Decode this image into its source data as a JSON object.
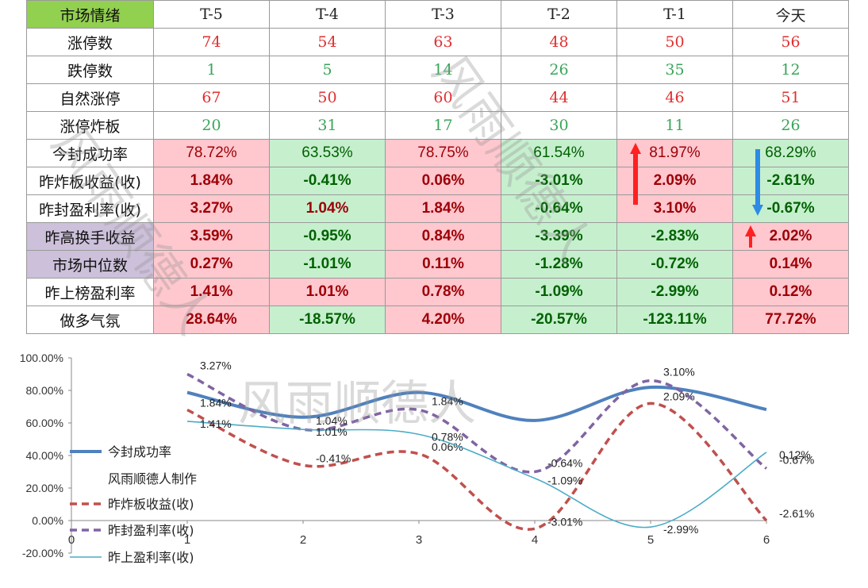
{
  "table": {
    "header": [
      "市场情绪",
      "T-5",
      "T-4",
      "T-3",
      "T-2",
      "T-1",
      "今天"
    ],
    "rows": [
      {
        "label": "涨停数",
        "values": [
          "74",
          "54",
          "63",
          "48",
          "50",
          "56"
        ],
        "kind": "num",
        "color": "red"
      },
      {
        "label": "跌停数",
        "values": [
          "1",
          "5",
          "14",
          "26",
          "35",
          "12"
        ],
        "kind": "num",
        "color": "green"
      },
      {
        "label": "自然涨停",
        "values": [
          "67",
          "50",
          "60",
          "44",
          "46",
          "51"
        ],
        "kind": "num",
        "color": "red"
      },
      {
        "label": "涨停炸板",
        "values": [
          "20",
          "31",
          "17",
          "30",
          "11",
          "26"
        ],
        "kind": "num",
        "color": "green"
      },
      {
        "label": "今封成功率",
        "values": [
          "78.72%",
          "63.53%",
          "78.75%",
          "61.54%",
          "81.97%",
          "68.29%"
        ],
        "kind": "pct-plain",
        "fills": [
          "pink",
          "green",
          "pink",
          "green",
          "pink",
          "green"
        ]
      },
      {
        "label": "昨炸板收益(收)",
        "values": [
          "1.84%",
          "-0.41%",
          "0.06%",
          "-3.01%",
          "2.09%",
          "-2.61%"
        ],
        "kind": "pct",
        "fills": [
          "pink",
          "green",
          "pink",
          "green",
          "pink",
          "green"
        ]
      },
      {
        "label": "昨封盈利率(收)",
        "values": [
          "3.27%",
          "1.04%",
          "1.84%",
          "-0.64%",
          "3.10%",
          "-0.67%"
        ],
        "kind": "pct",
        "fills": [
          "pink",
          "green",
          "pink",
          "green",
          "pink",
          "green"
        ]
      },
      {
        "label": "昨高换手收益",
        "values": [
          "3.59%",
          "-0.95%",
          "0.84%",
          "-3.39%",
          "-2.83%",
          "2.02%"
        ],
        "kind": "pct",
        "fills": [
          "pink",
          "green",
          "pink",
          "green",
          "green",
          "pink"
        ],
        "labelFill": "purple"
      },
      {
        "label": "市场中位数",
        "values": [
          "0.27%",
          "-1.01%",
          "0.11%",
          "-1.28%",
          "-0.72%",
          "0.14%"
        ],
        "kind": "pct",
        "fills": [
          "pink",
          "green",
          "pink",
          "green",
          "green",
          "pink"
        ],
        "labelFill": "purple"
      },
      {
        "label": "昨上榜盈利率",
        "values": [
          "1.41%",
          "1.01%",
          "0.78%",
          "-1.09%",
          "-2.99%",
          "0.12%"
        ],
        "kind": "pct",
        "fills": [
          "pink",
          "pink",
          "pink",
          "green",
          "green",
          "pink"
        ]
      },
      {
        "label": "做多气氛",
        "values": [
          "28.64%",
          "-18.57%",
          "4.20%",
          "-20.57%",
          "-123.11%",
          "77.72%"
        ],
        "kind": "pct",
        "fills": [
          "pink",
          "green",
          "pink",
          "green",
          "green",
          "pink"
        ]
      }
    ]
  },
  "watermarks": [
    "风雨顺德人",
    "风雨顺德人",
    "风雨顺德人"
  ],
  "chart_data": {
    "type": "line",
    "x": [
      1,
      2,
      3,
      4,
      5,
      6
    ],
    "xlim": [
      0,
      6
    ],
    "ylim": [
      -20,
      100
    ],
    "yticks": [
      -20,
      0,
      20,
      40,
      60,
      80,
      100
    ],
    "ytick_labels": [
      "-20.00%",
      "0.00%",
      "20.00%",
      "40.00%",
      "60.00%",
      "80.00%",
      "100.00%"
    ],
    "xticks": [
      0,
      1,
      2,
      3,
      4,
      5,
      6
    ],
    "legend_position": "left",
    "legend_note": "风雨顺德人制作",
    "series": [
      {
        "name": "今封成功率",
        "values": [
          78.72,
          63.53,
          78.75,
          61.54,
          81.97,
          68.29
        ],
        "color": "#4f81bd",
        "style": "solid-thick",
        "labels": []
      },
      {
        "name": "昨炸板收益(收)",
        "values": [
          1.84,
          -0.41,
          0.06,
          -3.01,
          2.09,
          -2.61
        ],
        "scale": 20,
        "offset": 32,
        "color": "#c0504d",
        "style": "dashed",
        "plot": [
          68,
          34,
          41,
          -5,
          72,
          0
        ],
        "labels": [
          "1.84%",
          "-0.41%",
          "0.06%",
          "-3.01%",
          "2.09%",
          "-2.61%"
        ]
      },
      {
        "name": "昨封盈利率(收)",
        "values": [
          3.27,
          1.04,
          1.84,
          -0.64,
          3.1,
          -0.67
        ],
        "plot": [
          90,
          56,
          68,
          30,
          86,
          32
        ],
        "color": "#8064a2",
        "style": "dashed",
        "labels": [
          "3.27%",
          "1.04%",
          "1.84%",
          "-0.64%",
          "3.10%",
          "-0.67%"
        ]
      },
      {
        "name": "昨上盈利率(收)",
        "values": [
          1.41,
          1.01,
          0.78,
          -1.09,
          -2.99,
          0.12
        ],
        "plot": [
          61,
          56,
          53,
          26,
          -4,
          42
        ],
        "color": "#4bacc6",
        "style": "thin",
        "labels": [
          "1.41%",
          "1.01%",
          "0.78%",
          "-1.09%",
          "-2.99%",
          "0.12%"
        ]
      }
    ]
  }
}
